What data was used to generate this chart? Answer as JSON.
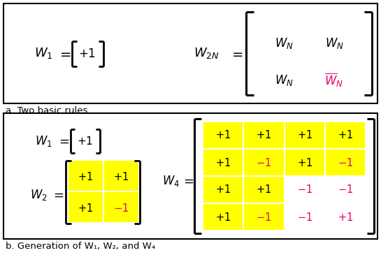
{
  "bg_color": "#ffffff",
  "border_color": "#000000",
  "yellow": "#ffff00",
  "black": "#000000",
  "pink": "#e8006a",
  "caption_a": "a. Two basic rules",
  "caption_b": "b. Generation of W₁, W₂, and W₄"
}
